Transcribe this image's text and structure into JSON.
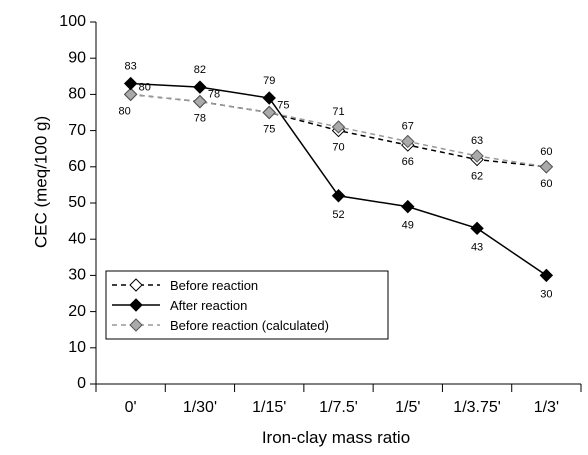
{
  "chart_data": {
    "type": "line",
    "title": "",
    "xlabel": "Iron-clay mass ratio",
    "ylabel": "CEC (meq/100 g)",
    "ylim": [
      0,
      100
    ],
    "yticks": [
      "0",
      "10",
      "20",
      "30",
      "40",
      "50",
      "60",
      "70",
      "80",
      "90",
      "100"
    ],
    "categories": [
      "0'",
      "1/30'",
      "1/15'",
      "1/7.5'",
      "1/5'",
      "1/3.75'",
      "1/3'"
    ],
    "grid": false,
    "legend_position": "bottom-left",
    "series": [
      {
        "name": "Before reaction",
        "values": [
          80,
          78,
          75,
          70,
          66,
          62,
          60
        ],
        "labels": [
          "80",
          "78",
          "75",
          "70",
          "66",
          "62",
          "60"
        ],
        "color": "#000000",
        "line_style": "dashed",
        "marker": "open-diamond"
      },
      {
        "name": "After reaction",
        "values": [
          83,
          82,
          79,
          52,
          49,
          43,
          30
        ],
        "labels": [
          "83",
          "82",
          "79",
          "52",
          "49",
          "43",
          "30"
        ],
        "color": "#000000",
        "line_style": "solid",
        "marker": "filled-diamond"
      },
      {
        "name": "Before reaction (calculated)",
        "values": [
          80,
          78,
          75,
          71,
          67,
          63,
          60
        ],
        "labels": [
          "80",
          "78",
          "75",
          "71",
          "67",
          "63",
          "60"
        ],
        "color": "#999999",
        "line_style": "dashed",
        "marker": "grey-diamond"
      }
    ]
  }
}
